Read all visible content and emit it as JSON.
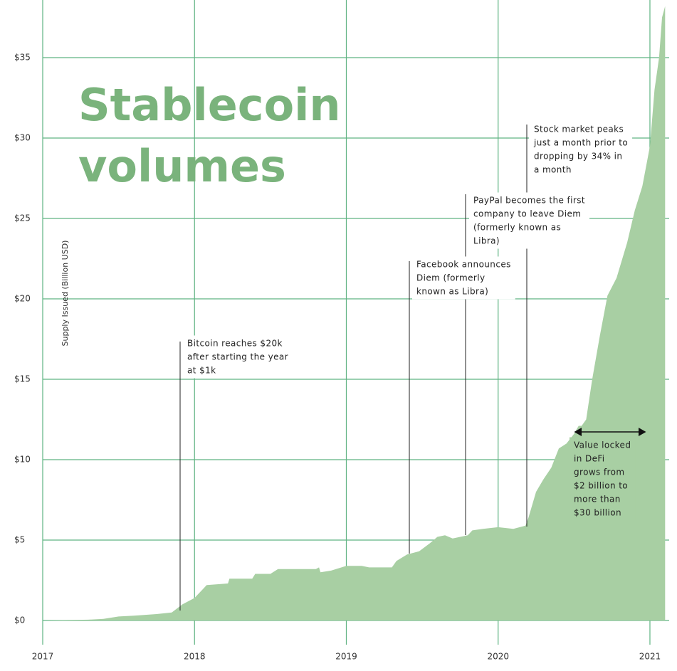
{
  "chart_data": {
    "type": "area",
    "title_lines": [
      "Stablecoin",
      "volumes"
    ],
    "y_label": "Supply Issued (Billion USD)",
    "color": "#a8cfa3",
    "x": [
      2017.0,
      2017.3,
      2017.4,
      2017.5,
      2017.6,
      2017.75,
      2017.85,
      2017.92,
      2018.0,
      2018.05,
      2018.08,
      2018.22,
      2018.23,
      2018.38,
      2018.4,
      2018.5,
      2018.55,
      2018.8,
      2018.82,
      2018.83,
      2018.9,
      2019.0,
      2019.1,
      2019.15,
      2019.3,
      2019.33,
      2019.4,
      2019.48,
      2019.55,
      2019.6,
      2019.65,
      2019.7,
      2019.8,
      2019.83,
      2019.9,
      2020.0,
      2020.1,
      2020.18,
      2020.2,
      2020.25,
      2020.3,
      2020.35,
      2020.4,
      2020.45,
      2020.5,
      2020.53,
      2020.55,
      2020.58,
      2020.62,
      2020.67,
      2020.72,
      2020.78,
      2020.85,
      2020.9,
      2020.95,
      2021.0,
      2021.03,
      2021.06,
      2021.08,
      2021.1
    ],
    "values": [
      0,
      0.05,
      0.1,
      0.25,
      0.3,
      0.4,
      0.5,
      1.0,
      1.4,
      1.9,
      2.2,
      2.3,
      2.6,
      2.6,
      2.9,
      2.9,
      3.2,
      3.2,
      3.3,
      3.0,
      3.1,
      3.4,
      3.4,
      3.3,
      3.3,
      3.7,
      4.1,
      4.3,
      4.8,
      5.2,
      5.3,
      5.1,
      5.3,
      5.6,
      5.7,
      5.8,
      5.7,
      5.9,
      6.4,
      8.0,
      8.8,
      9.5,
      10.7,
      11.0,
      11.6,
      12.1,
      12.1,
      12.5,
      15,
      17.7,
      20.2,
      21.3,
      23.5,
      25.5,
      27,
      29.5,
      33,
      35,
      37.5,
      38.2
    ],
    "xlim": [
      2017,
      2021.1
    ],
    "ylim": [
      0,
      38.2
    ],
    "xticks": [
      2017,
      2018,
      2019,
      2020,
      2021
    ],
    "yticks": [
      {
        "value": 0,
        "label": "$0"
      },
      {
        "value": 5,
        "label": "$5"
      },
      {
        "value": 10,
        "label": "$10"
      },
      {
        "value": 15,
        "label": "$15"
      },
      {
        "value": 20,
        "label": "$20"
      },
      {
        "value": 25,
        "label": "$25"
      },
      {
        "value": 30,
        "label": "$30"
      },
      {
        "value": 35,
        "label": "$35"
      }
    ],
    "grid": true,
    "annotations": [
      [
        "Bitcoin reaches $20k",
        "after starting the year",
        "at $1k"
      ],
      [
        "Facebook announces",
        "Diem (formerly",
        "known as Libra)"
      ],
      [
        "PayPal becomes the first",
        "company to leave Diem",
        "(formerly known as",
        "Libra)"
      ],
      [
        "Stock market peaks",
        "just a month prior to",
        "dropping by 34% in",
        "a month"
      ],
      [
        "Value locked",
        "in DeFi",
        "grows from",
        "$2 billion to",
        "more than",
        "$30 billion"
      ]
    ]
  }
}
